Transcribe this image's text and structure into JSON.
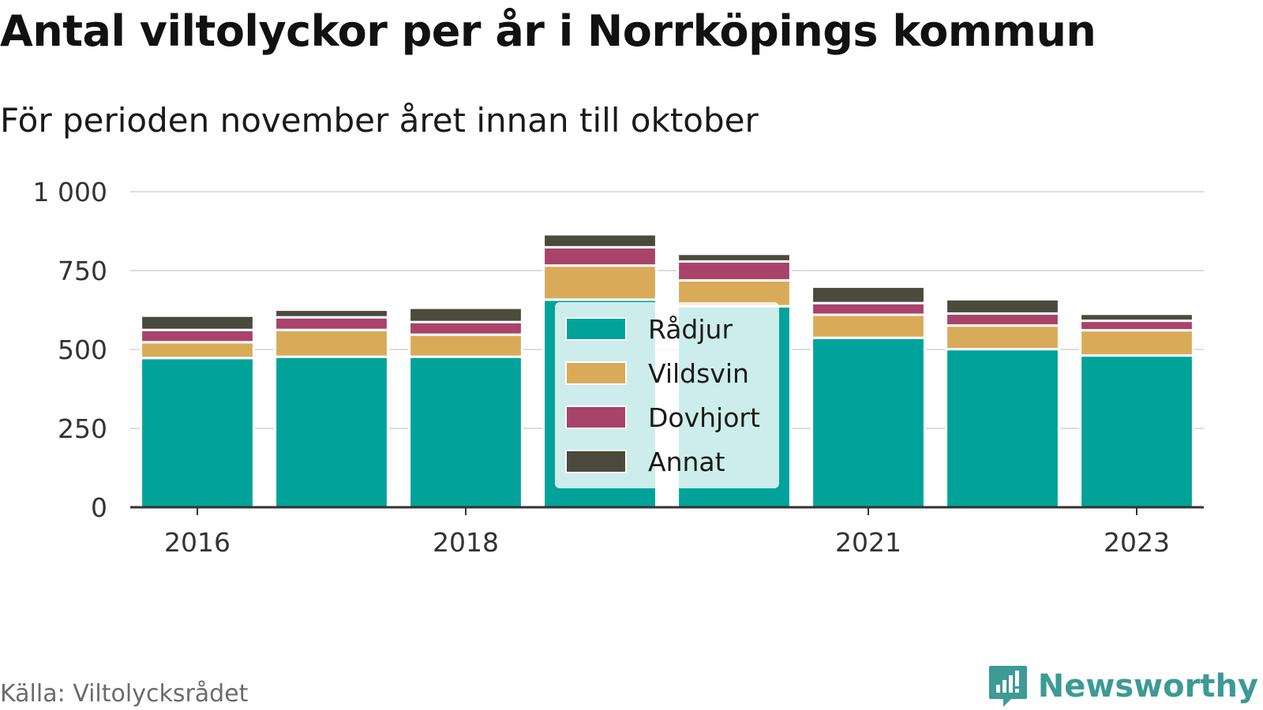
{
  "title": "Antal viltolyckor per år i Norrköpings kommun",
  "subtitle": "För perioden november året innan till oktober",
  "source": "Källa: Viltolycksrådet",
  "brand": {
    "name": "Newsworthy",
    "icon": "newsworthy-logo-icon",
    "color": "#3d9a94"
  },
  "chart_data": {
    "type": "bar",
    "stacked": true,
    "categories": [
      "2016",
      "2017",
      "2018",
      "2019",
      "2020",
      "2021",
      "2022",
      "2023"
    ],
    "x_tick_labels": [
      "2016",
      "",
      "2018",
      "",
      "",
      "2021",
      "",
      "2023"
    ],
    "series": [
      {
        "name": "Rådjur",
        "color": "#00a39a",
        "values": [
          473,
          477,
          477,
          658,
          637,
          537,
          501,
          481
        ]
      },
      {
        "name": "Vildsvin",
        "color": "#d9ab59",
        "values": [
          50,
          85,
          70,
          108,
          82,
          73,
          75,
          80
        ]
      },
      {
        "name": "Dovhjort",
        "color": "#a8436a",
        "values": [
          39,
          40,
          40,
          58,
          60,
          37,
          38,
          30
        ]
      },
      {
        "name": "Annat",
        "color": "#4a4a3d",
        "values": [
          45,
          24,
          45,
          41,
          24,
          52,
          45,
          22
        ]
      }
    ],
    "ylim": [
      0,
      1000
    ],
    "y_ticks": [
      0,
      250,
      500,
      750,
      1000
    ],
    "y_tick_labels": [
      "0",
      "250",
      "500",
      "750",
      "1 000"
    ],
    "xlabel": "",
    "ylabel": "",
    "grid": true,
    "legend_position": "center"
  }
}
